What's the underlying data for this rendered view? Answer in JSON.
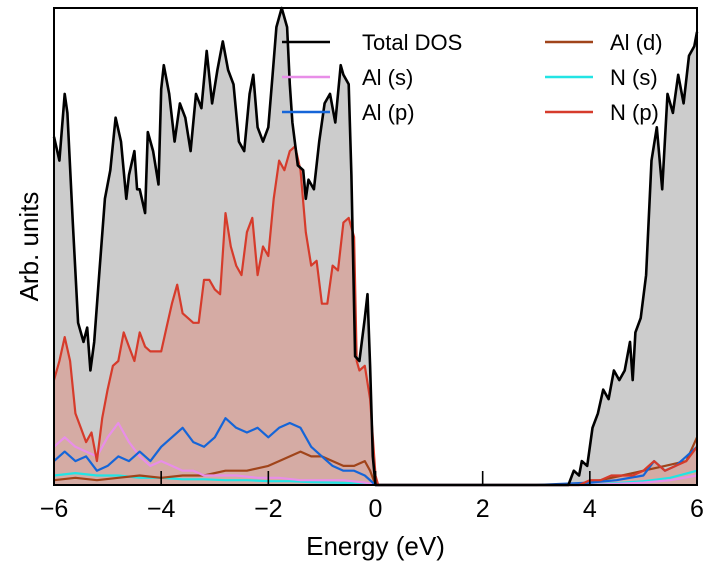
{
  "chart_data": {
    "type": "area",
    "title": "",
    "xlabel": "Energy (eV)",
    "ylabel": "Arb. units",
    "xlim": [
      -6,
      6
    ],
    "ylim": [
      0,
      1.0
    ],
    "x_ticks": [
      -6,
      -4,
      -2,
      0,
      2,
      4,
      6
    ],
    "x_tick_labels": [
      "−6",
      "−4",
      "−2",
      "0",
      "2",
      "4",
      "6"
    ],
    "y_ticks_shown": false,
    "grid": false,
    "legend_placement": "top",
    "colors": {
      "total": "#000000",
      "total_fill": "#cccccc",
      "al_s": "#e88ee8",
      "al_p": "#1565d8",
      "al_d": "#a0441a",
      "n_s": "#22e4e4",
      "n_p": "#d63b2b",
      "n_p_fill": "#d6a49c"
    },
    "series": [
      {
        "name": "Total DOS",
        "key": "total",
        "x": [
          -6.0,
          -5.9,
          -5.8,
          -5.75,
          -5.65,
          -5.55,
          -5.45,
          -5.38,
          -5.32,
          -5.25,
          -5.15,
          -5.05,
          -4.95,
          -4.85,
          -4.75,
          -4.65,
          -4.6,
          -4.5,
          -4.45,
          -4.4,
          -4.3,
          -4.25,
          -4.15,
          -4.05,
          -4.0,
          -3.95,
          -3.85,
          -3.75,
          -3.65,
          -3.55,
          -3.45,
          -3.35,
          -3.25,
          -3.15,
          -3.05,
          -2.95,
          -2.85,
          -2.75,
          -2.65,
          -2.55,
          -2.45,
          -2.35,
          -2.28,
          -2.2,
          -2.1,
          -2.0,
          -1.92,
          -1.85,
          -1.75,
          -1.65,
          -1.6,
          -1.55,
          -1.45,
          -1.35,
          -1.3,
          -1.25,
          -1.15,
          -1.05,
          -0.95,
          -0.85,
          -0.75,
          -0.65,
          -0.6,
          -0.5,
          -0.45,
          -0.38,
          -0.3,
          -0.2,
          -0.15,
          -0.1,
          -0.05,
          0.0,
          0.05,
          0.1,
          0.2,
          1.0,
          2.0,
          3.0,
          3.6,
          3.7,
          3.8,
          3.85,
          3.95,
          4.05,
          4.15,
          4.25,
          4.35,
          4.45,
          4.55,
          4.65,
          4.75,
          4.8,
          4.85,
          4.95,
          5.05,
          5.15,
          5.25,
          5.35,
          5.45,
          5.55,
          5.65,
          5.75,
          5.85,
          5.95,
          6.0
        ],
        "y": [
          0.73,
          0.68,
          0.82,
          0.78,
          0.55,
          0.34,
          0.3,
          0.33,
          0.24,
          0.3,
          0.45,
          0.6,
          0.66,
          0.77,
          0.72,
          0.6,
          0.65,
          0.7,
          0.62,
          0.62,
          0.57,
          0.74,
          0.7,
          0.63,
          0.83,
          0.88,
          0.82,
          0.72,
          0.8,
          0.77,
          0.7,
          0.82,
          0.79,
          0.91,
          0.8,
          0.87,
          0.93,
          0.87,
          0.84,
          0.72,
          0.7,
          0.82,
          0.86,
          0.75,
          0.72,
          0.75,
          0.86,
          0.96,
          1.0,
          0.96,
          0.84,
          0.76,
          0.67,
          0.66,
          0.6,
          0.64,
          0.62,
          0.72,
          0.8,
          0.82,
          0.76,
          0.88,
          0.86,
          0.84,
          0.65,
          0.27,
          0.26,
          0.35,
          0.4,
          0.25,
          0.06,
          0.0,
          0.0,
          0.0,
          0.0,
          0.0,
          0.0,
          0.0,
          0.0,
          0.03,
          0.02,
          0.05,
          0.04,
          0.12,
          0.15,
          0.2,
          0.18,
          0.24,
          0.22,
          0.24,
          0.3,
          0.22,
          0.32,
          0.35,
          0.44,
          0.68,
          0.75,
          0.62,
          0.82,
          0.78,
          0.86,
          0.8,
          0.9,
          0.92,
          0.95
        ]
      },
      {
        "name": "N (p)",
        "key": "n_p",
        "x": [
          -6.0,
          -5.9,
          -5.8,
          -5.7,
          -5.6,
          -5.5,
          -5.4,
          -5.3,
          -5.2,
          -5.1,
          -5.0,
          -4.9,
          -4.8,
          -4.7,
          -4.6,
          -4.5,
          -4.4,
          -4.3,
          -4.2,
          -4.1,
          -4.0,
          -3.9,
          -3.8,
          -3.7,
          -3.6,
          -3.5,
          -3.4,
          -3.3,
          -3.2,
          -3.1,
          -3.0,
          -2.9,
          -2.8,
          -2.7,
          -2.6,
          -2.5,
          -2.4,
          -2.3,
          -2.2,
          -2.1,
          -2.0,
          -1.9,
          -1.8,
          -1.7,
          -1.6,
          -1.5,
          -1.4,
          -1.3,
          -1.2,
          -1.1,
          -1.0,
          -0.9,
          -0.8,
          -0.7,
          -0.6,
          -0.5,
          -0.4,
          -0.35,
          -0.3,
          -0.2,
          -0.1,
          0.0,
          0.05,
          0.2,
          1.0,
          2.0,
          3.0,
          3.8,
          4.0,
          4.2,
          4.4,
          4.6,
          4.8,
          5.0,
          5.2,
          5.4,
          5.6,
          5.8,
          6.0
        ],
        "y": [
          0.22,
          0.26,
          0.31,
          0.26,
          0.15,
          0.12,
          0.09,
          0.11,
          0.05,
          0.14,
          0.2,
          0.25,
          0.26,
          0.32,
          0.29,
          0.26,
          0.32,
          0.29,
          0.28,
          0.28,
          0.28,
          0.33,
          0.38,
          0.42,
          0.36,
          0.35,
          0.34,
          0.34,
          0.43,
          0.43,
          0.41,
          0.4,
          0.57,
          0.5,
          0.46,
          0.44,
          0.53,
          0.56,
          0.44,
          0.5,
          0.48,
          0.6,
          0.68,
          0.66,
          0.7,
          0.71,
          0.66,
          0.53,
          0.46,
          0.47,
          0.38,
          0.38,
          0.46,
          0.45,
          0.55,
          0.56,
          0.52,
          0.26,
          0.24,
          0.25,
          0.18,
          0.02,
          0.0,
          0.0,
          0.0,
          0.0,
          0.0,
          0.0,
          0.01,
          0.01,
          0.02,
          0.02,
          0.02,
          0.03,
          0.05,
          0.03,
          0.04,
          0.05,
          0.08
        ]
      },
      {
        "name": "Al (p)",
        "key": "al_p",
        "x": [
          -6.0,
          -5.8,
          -5.6,
          -5.4,
          -5.2,
          -5.0,
          -4.8,
          -4.6,
          -4.4,
          -4.2,
          -4.0,
          -3.8,
          -3.6,
          -3.4,
          -3.2,
          -3.0,
          -2.8,
          -2.6,
          -2.4,
          -2.2,
          -2.0,
          -1.8,
          -1.6,
          -1.4,
          -1.2,
          -1.0,
          -0.8,
          -0.6,
          -0.4,
          -0.2,
          0.0,
          0.1,
          1.0,
          3.0,
          4.0,
          4.5,
          5.0,
          5.2,
          5.4,
          5.6,
          5.8,
          6.0
        ],
        "y": [
          0.05,
          0.07,
          0.05,
          0.06,
          0.03,
          0.04,
          0.06,
          0.05,
          0.07,
          0.05,
          0.08,
          0.1,
          0.12,
          0.09,
          0.08,
          0.1,
          0.14,
          0.12,
          0.11,
          0.12,
          0.1,
          0.12,
          0.13,
          0.12,
          0.08,
          0.06,
          0.04,
          0.03,
          0.03,
          0.02,
          0.0,
          0.0,
          0.0,
          0.0,
          0.005,
          0.01,
          0.02,
          0.05,
          0.03,
          0.04,
          0.06,
          0.08
        ]
      },
      {
        "name": "Al (s)",
        "key": "al_s",
        "x": [
          -6.0,
          -5.8,
          -5.6,
          -5.4,
          -5.2,
          -5.0,
          -4.8,
          -4.6,
          -4.4,
          -4.2,
          -4.0,
          -3.8,
          -3.6,
          -3.4,
          -3.2,
          -3.0,
          -2.6,
          -2.2,
          -1.8,
          -1.4,
          -1.0,
          -0.6,
          -0.2,
          0.0,
          1.0,
          4.0,
          5.0,
          5.5,
          6.0
        ],
        "y": [
          0.08,
          0.1,
          0.08,
          0.07,
          0.06,
          0.1,
          0.13,
          0.09,
          0.06,
          0.04,
          0.05,
          0.04,
          0.03,
          0.03,
          0.02,
          0.02,
          0.02,
          0.015,
          0.015,
          0.01,
          0.01,
          0.01,
          0.005,
          0.0,
          0.0,
          0.0,
          0.005,
          0.01,
          0.02
        ]
      },
      {
        "name": "Al (d)",
        "key": "al_d",
        "x": [
          -6.0,
          -5.6,
          -5.2,
          -4.8,
          -4.4,
          -4.0,
          -3.6,
          -3.2,
          -2.8,
          -2.4,
          -2.0,
          -1.8,
          -1.6,
          -1.4,
          -1.2,
          -1.0,
          -0.8,
          -0.6,
          -0.4,
          -0.2,
          -0.1,
          0.0,
          1.0,
          3.8,
          4.2,
          4.6,
          5.0,
          5.4,
          5.8,
          6.0
        ],
        "y": [
          0.01,
          0.015,
          0.01,
          0.015,
          0.02,
          0.015,
          0.02,
          0.02,
          0.03,
          0.03,
          0.04,
          0.05,
          0.06,
          0.07,
          0.06,
          0.06,
          0.05,
          0.04,
          0.04,
          0.05,
          0.03,
          0.0,
          0.0,
          0.0,
          0.01,
          0.02,
          0.03,
          0.04,
          0.05,
          0.1
        ]
      },
      {
        "name": "N (s)",
        "key": "n_s",
        "x": [
          -6.0,
          -5.6,
          -5.2,
          -4.8,
          -4.4,
          -4.0,
          -3.6,
          -3.2,
          -2.8,
          -2.4,
          -2.0,
          -1.6,
          -1.2,
          -0.8,
          -0.4,
          0.0,
          1.0,
          4.0,
          5.0,
          5.5,
          6.0
        ],
        "y": [
          0.02,
          0.025,
          0.02,
          0.02,
          0.015,
          0.015,
          0.012,
          0.012,
          0.01,
          0.01,
          0.008,
          0.008,
          0.006,
          0.005,
          0.004,
          0.0,
          0.0,
          0.0,
          0.008,
          0.015,
          0.03
        ]
      }
    ],
    "legend": [
      {
        "label": "Total DOS",
        "key": "total"
      },
      {
        "label": "Al (s)",
        "key": "al_s"
      },
      {
        "label": "Al (p)",
        "key": "al_p"
      },
      {
        "label": "Al (d)",
        "key": "al_d"
      },
      {
        "label": "N (s)",
        "key": "n_s"
      },
      {
        "label": "N (p)",
        "key": "n_p"
      }
    ]
  }
}
